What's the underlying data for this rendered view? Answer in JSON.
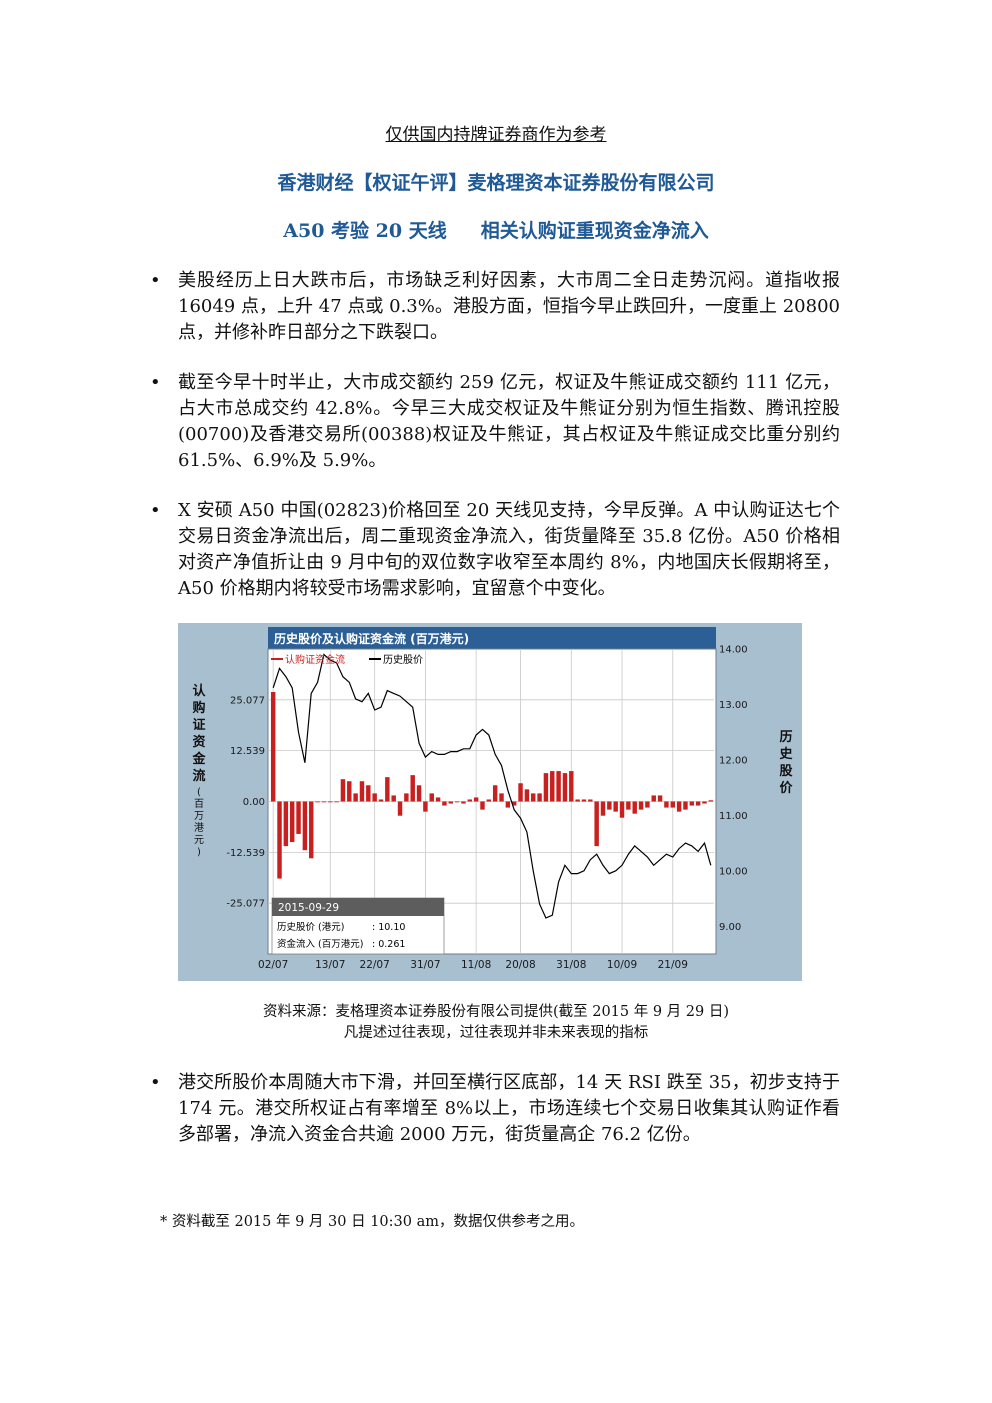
{
  "header": {
    "disclaimer": "仅供国内持牌证券商作为参考",
    "title": "香港财经【权证午评】麦格理资本证券股份有限公司",
    "subtitle_part1": "A50 考验 20 天线",
    "subtitle_part2": "相关认购证重现资金净流入"
  },
  "bullets": [
    "美股经历上日大跌市后，市场缺乏利好因素，大市周二全日走势沉闷。道指收报 16049 点，上升 47 点或 0.3%。港股方面，恒指今早止跌回升，一度重上 20800 点，并修补昨日部分之下跌裂口。",
    "截至今早十时半止，大市成交额约 259 亿元，权证及牛熊证成交额约 111 亿元，占大市总成交约 42.8%。今早三大成交权证及牛熊证分别为恒生指数、腾讯控股(00700)及香港交易所(00388)权证及牛熊证，其占权证及牛熊证成交比重分别约 61.5%、6.9%及 5.9%。",
    "X 安硕 A50 中国(02823)价格回至 20 天线见支持，今早反弹。A 中认购证达七个交易日资金净流出后，周二重现资金净流入，街货量降至 35.8 亿份。A50 价格相对资产净值折让由 9 月中旬的双位数字收窄至本周约 8%，内地国庆长假期将至，A50 价格期内将较受市场需求影响，宜留意个中变化。",
    "港交所股价本周随大市下滑，并回至横行区底部，14 天 RSI 跌至 35，初步支持于 174 元。港交所权证占有率增至 8%以上，市场连续七个交易日收集其认购证作看多部署，净流入资金合共逾 2000 万元，街货量高企 76.2 亿份。"
  ],
  "bullet_symbol": "•",
  "caption": {
    "line1": "资料来源：麦格理资本证券股份有限公司提供(截至 2015 年 9 月 29 日)",
    "line2": "凡提述过往表现，过往表现并非未来表现的指标"
  },
  "footnote": "*  资料截至 2015 年 9 月 30 日 10:30 am，数据仅供参考之用。",
  "chart_data": {
    "type": "bar+line",
    "title": "历史股价及认购证资金流 (百万港元)",
    "left_axis_label": "认购证资金流",
    "left_axis_unit": "(百万港元)",
    "right_axis_label": "历史股价",
    "legend": {
      "bar": "认购证资金流",
      "line": "历史股价"
    },
    "bar_color": "#c8201e",
    "line_color": "#000000",
    "left_ticks": [
      "25.077",
      "12.539",
      "0.00",
      "-12.539",
      "-25.077"
    ],
    "left_tick_values": [
      25.077,
      12.539,
      0,
      -12.539,
      -25.077
    ],
    "right_ticks": [
      "14.00",
      "13.00",
      "12.00",
      "11.00",
      "10.00",
      "9.00"
    ],
    "right_tick_values": [
      14,
      13,
      12,
      11,
      10,
      9
    ],
    "ylim_left": [
      -37.6,
      37.6
    ],
    "ylim_right": [
      8.5,
      14.0
    ],
    "x_tick_labels": [
      "02/07",
      "13/07",
      "22/07",
      "31/07",
      "11/08",
      "20/08",
      "31/08",
      "10/09",
      "21/09"
    ],
    "x_tick_index": [
      0,
      9,
      16,
      24,
      32,
      39,
      47,
      55,
      63
    ],
    "n_days": 70,
    "flows": [
      27,
      -19,
      -11,
      -10,
      -8,
      -12,
      -14,
      0,
      0,
      0,
      0,
      5.5,
      5,
      2,
      5,
      4,
      2,
      0.5,
      6,
      1.5,
      -3.5,
      2,
      6.5,
      4,
      -2.5,
      2,
      1,
      -1,
      -0.5,
      0,
      -0.5,
      0.5,
      1,
      -2,
      0.5,
      4,
      2,
      -1.5,
      -1,
      4.5,
      3,
      2,
      2,
      7,
      7.5,
      7.5,
      7,
      7.5,
      0.5,
      0.5,
      0.5,
      -11,
      -3.5,
      -2,
      -2.5,
      -4,
      -2,
      -3,
      -2,
      -1.5,
      1.5,
      1.5,
      -1.5,
      -1.5,
      -2.5,
      -2,
      -1,
      -1,
      -0.5,
      0.3
    ],
    "prices": [
      13.3,
      13.65,
      13.5,
      13.3,
      12.5,
      11.95,
      13.2,
      13.4,
      13.9,
      13.8,
      13.75,
      13.5,
      13.4,
      13.1,
      13.05,
      13.2,
      12.9,
      12.95,
      13.25,
      13.2,
      13.15,
      13.05,
      12.95,
      12.3,
      12.05,
      12.15,
      12.1,
      12.1,
      12.15,
      12.15,
      12.2,
      12.2,
      12.45,
      12.55,
      12.45,
      12.1,
      11.9,
      11.45,
      11.1,
      10.95,
      10.7,
      10.0,
      9.4,
      9.15,
      9.2,
      9.8,
      10.1,
      9.95,
      9.95,
      10.0,
      10.2,
      10.3,
      10.1,
      9.95,
      10.0,
      10.1,
      10.3,
      10.45,
      10.35,
      10.25,
      10.1,
      10.2,
      10.3,
      10.25,
      10.4,
      10.5,
      10.45,
      10.35,
      10.5,
      10.1
    ],
    "tooltip": {
      "date": "2015-09-29",
      "price_label": "历史股价 (港元)",
      "price_value": ": 10.10",
      "flow_label": "资金流入 (百万港元)",
      "flow_value": ": 0.261"
    }
  }
}
